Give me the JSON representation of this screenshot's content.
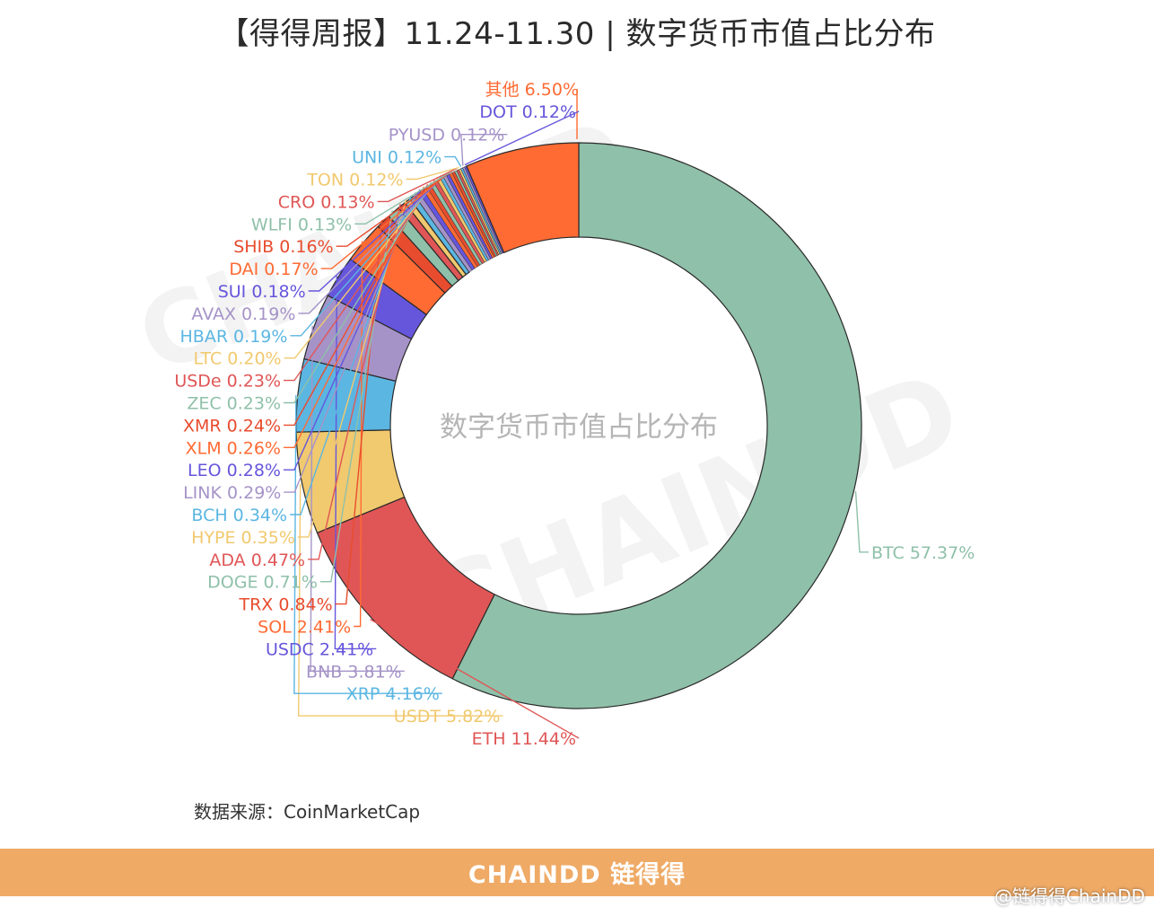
{
  "title": "【得得周报】11.24-11.30 | 数字货币市值占比分布",
  "source": "数据来源：CoinMarketCap",
  "footer_logo": "CHAINDD 链得得",
  "credit": "@链得得ChainDD",
  "watermark": "CHAINDD",
  "chart_data": {
    "type": "pie",
    "center_label": "数字货币市值占比分布",
    "slices": [
      {
        "label": "BTC",
        "value": 57.37,
        "display": "57.37%",
        "color": "#8fc0a9"
      },
      {
        "label": "ETH",
        "value": 11.44,
        "display": "11.44%",
        "color": "#e05656"
      },
      {
        "label": "USDT",
        "value": 5.82,
        "display": "5.82%",
        "color": "#f1c96e"
      },
      {
        "label": "XRP",
        "value": 4.16,
        "display": "4.16%",
        "color": "#5bb6e2"
      },
      {
        "label": "BNB",
        "value": 3.81,
        "display": "3.81%",
        "color": "#a593c8"
      },
      {
        "label": "USDC",
        "value": 2.41,
        "display": "2.41%",
        "color": "#6656dc"
      },
      {
        "label": "SOL",
        "value": 2.41,
        "display": "2.41%",
        "color": "#ff6b33"
      },
      {
        "label": "TRX",
        "value": 0.84,
        "display": "0.84%",
        "color": "#e84c2e"
      },
      {
        "label": "DOGE",
        "value": 0.71,
        "display": "0.71%",
        "color": "#8fc0a9"
      },
      {
        "label": "ADA",
        "value": 0.47,
        "display": "0.47%",
        "color": "#e05656"
      },
      {
        "label": "HYPE",
        "value": 0.35,
        "display": "0.35%",
        "color": "#f1c96e"
      },
      {
        "label": "BCH",
        "value": 0.34,
        "display": "0.34%",
        "color": "#5bb6e2"
      },
      {
        "label": "LINK",
        "value": 0.29,
        "display": "0.29%",
        "color": "#a593c8"
      },
      {
        "label": "LEO",
        "value": 0.28,
        "display": "0.28%",
        "color": "#6656dc"
      },
      {
        "label": "XLM",
        "value": 0.26,
        "display": "0.26%",
        "color": "#ff6b33"
      },
      {
        "label": "XMR",
        "value": 0.24,
        "display": "0.24%",
        "color": "#e84c2e"
      },
      {
        "label": "ZEC",
        "value": 0.23,
        "display": "0.23%",
        "color": "#8fc0a9"
      },
      {
        "label": "USDe",
        "value": 0.23,
        "display": "0.23%",
        "color": "#e05656"
      },
      {
        "label": "LTC",
        "value": 0.2,
        "display": "0.20%",
        "color": "#f1c96e"
      },
      {
        "label": "HBAR",
        "value": 0.19,
        "display": "0.19%",
        "color": "#5bb6e2"
      },
      {
        "label": "AVAX",
        "value": 0.19,
        "display": "0.19%",
        "color": "#a593c8"
      },
      {
        "label": "SUI",
        "value": 0.18,
        "display": "0.18%",
        "color": "#6656dc"
      },
      {
        "label": "DAI",
        "value": 0.17,
        "display": "0.17%",
        "color": "#ff6b33"
      },
      {
        "label": "SHIB",
        "value": 0.16,
        "display": "0.16%",
        "color": "#e84c2e"
      },
      {
        "label": "WLFI",
        "value": 0.13,
        "display": "0.13%",
        "color": "#8fc0a9"
      },
      {
        "label": "CRO",
        "value": 0.13,
        "display": "0.13%",
        "color": "#e05656"
      },
      {
        "label": "TON",
        "value": 0.12,
        "display": "0.12%",
        "color": "#f1c96e"
      },
      {
        "label": "UNI",
        "value": 0.12,
        "display": "0.12%",
        "color": "#5bb6e2"
      },
      {
        "label": "PYUSD",
        "value": 0.12,
        "display": "0.12%",
        "color": "#a593c8"
      },
      {
        "label": "DOT",
        "value": 0.12,
        "display": "0.12%",
        "color": "#6656dc"
      },
      {
        "label": "其他",
        "value": 6.5,
        "display": "6.50%",
        "color": "#ff6b33"
      }
    ]
  }
}
